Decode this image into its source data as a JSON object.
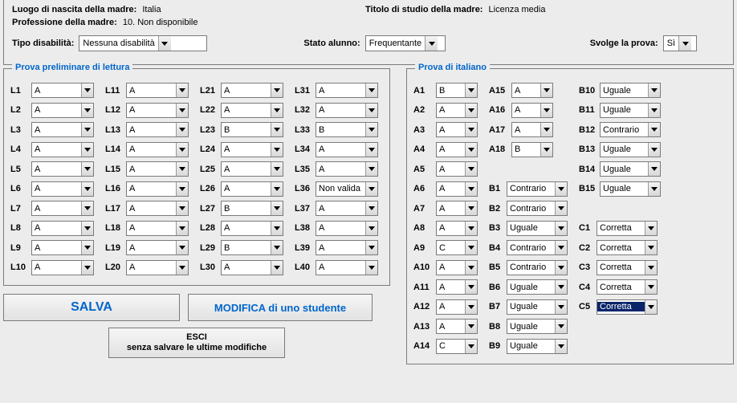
{
  "info": {
    "birthplace_label": "Luogo di nascita della madre:",
    "birthplace_value": "Italia",
    "degree_label": "Titolo di studio della madre:",
    "degree_value": "Licenza media",
    "profession_label": "Professione della madre:",
    "profession_value": "10. Non disponibile"
  },
  "selectors": {
    "disability_label": "Tipo disabilità:",
    "disability_value": "Nessuna disabilità",
    "status_label": "Stato alunno:",
    "status_value": "Frequentante",
    "test_label": "Svolge la prova:",
    "test_value": "Sì"
  },
  "reading": {
    "legend": "Prova preliminare di lettura",
    "col1": [
      {
        "l": "L1",
        "v": "A"
      },
      {
        "l": "L2",
        "v": "A"
      },
      {
        "l": "L3",
        "v": "A"
      },
      {
        "l": "L4",
        "v": "A"
      },
      {
        "l": "L5",
        "v": "A"
      },
      {
        "l": "L6",
        "v": "A"
      },
      {
        "l": "L7",
        "v": "A"
      },
      {
        "l": "L8",
        "v": "A"
      },
      {
        "l": "L9",
        "v": "A"
      },
      {
        "l": "L10",
        "v": "A"
      }
    ],
    "col2": [
      {
        "l": "L11",
        "v": "A"
      },
      {
        "l": "L12",
        "v": "A"
      },
      {
        "l": "L13",
        "v": "A"
      },
      {
        "l": "L14",
        "v": "A"
      },
      {
        "l": "L15",
        "v": "A"
      },
      {
        "l": "L16",
        "v": "A"
      },
      {
        "l": "L17",
        "v": "A"
      },
      {
        "l": "L18",
        "v": "A"
      },
      {
        "l": "L19",
        "v": "A"
      },
      {
        "l": "L20",
        "v": "A"
      }
    ],
    "col3": [
      {
        "l": "L21",
        "v": "A"
      },
      {
        "l": "L22",
        "v": "A"
      },
      {
        "l": "L23",
        "v": "B"
      },
      {
        "l": "L24",
        "v": "A"
      },
      {
        "l": "L25",
        "v": "A"
      },
      {
        "l": "L26",
        "v": "A"
      },
      {
        "l": "L27",
        "v": "B"
      },
      {
        "l": "L28",
        "v": "A"
      },
      {
        "l": "L29",
        "v": "B"
      },
      {
        "l": "L30",
        "v": "A"
      }
    ],
    "col4": [
      {
        "l": "L31",
        "v": "A"
      },
      {
        "l": "L32",
        "v": "A"
      },
      {
        "l": "L33",
        "v": "B"
      },
      {
        "l": "L34",
        "v": "A"
      },
      {
        "l": "L35",
        "v": "A"
      },
      {
        "l": "L36",
        "v": "Non valida"
      },
      {
        "l": "L37",
        "v": "A"
      },
      {
        "l": "L38",
        "v": "A"
      },
      {
        "l": "L39",
        "v": "A"
      },
      {
        "l": "L40",
        "v": "A"
      }
    ]
  },
  "italian": {
    "legend": "Prova di italiano",
    "colA1": [
      {
        "l": "A1",
        "v": "B"
      },
      {
        "l": "A2",
        "v": "A"
      },
      {
        "l": "A3",
        "v": "A"
      },
      {
        "l": "A4",
        "v": "A"
      },
      {
        "l": "A5",
        "v": "A"
      },
      {
        "l": "A6",
        "v": "A"
      },
      {
        "l": "A7",
        "v": "A"
      },
      {
        "l": "A8",
        "v": "A"
      },
      {
        "l": "A9",
        "v": "C"
      },
      {
        "l": "A10",
        "v": "A"
      },
      {
        "l": "A11",
        "v": "A"
      },
      {
        "l": "A12",
        "v": "A"
      },
      {
        "l": "A13",
        "v": "A"
      },
      {
        "l": "A14",
        "v": "C"
      }
    ],
    "colA2": [
      {
        "l": "A15",
        "v": "A"
      },
      {
        "l": "A16",
        "v": "A"
      },
      {
        "l": "A17",
        "v": "A"
      },
      {
        "l": "A18",
        "v": "B"
      }
    ],
    "colB": [
      {
        "l": "B1",
        "v": "Contrario"
      },
      {
        "l": "B2",
        "v": "Contrario"
      },
      {
        "l": "B3",
        "v": "Uguale"
      },
      {
        "l": "B4",
        "v": "Contrario"
      },
      {
        "l": "B5",
        "v": "Contrario"
      },
      {
        "l": "B6",
        "v": "Uguale"
      },
      {
        "l": "B7",
        "v": "Uguale"
      },
      {
        "l": "B8",
        "v": "Uguale"
      },
      {
        "l": "B9",
        "v": "Uguale"
      }
    ],
    "colB2": [
      {
        "l": "B10",
        "v": "Uguale"
      },
      {
        "l": "B11",
        "v": "Uguale"
      },
      {
        "l": "B12",
        "v": "Contrario"
      },
      {
        "l": "B13",
        "v": "Uguale"
      },
      {
        "l": "B14",
        "v": "Uguale"
      },
      {
        "l": "B15",
        "v": "Uguale"
      }
    ],
    "colC": [
      {
        "l": "C1",
        "v": "Corretta"
      },
      {
        "l": "C2",
        "v": "Corretta"
      },
      {
        "l": "C3",
        "v": "Corretta"
      },
      {
        "l": "C4",
        "v": "Corretta"
      },
      {
        "l": "C5",
        "v": "Corretta",
        "hl": true
      }
    ]
  },
  "buttons": {
    "save": "SALVA",
    "modify": "MODIFICA di uno studente",
    "exit_l1": "ESCI",
    "exit_l2": "senza salvare le ultime modifiche"
  }
}
